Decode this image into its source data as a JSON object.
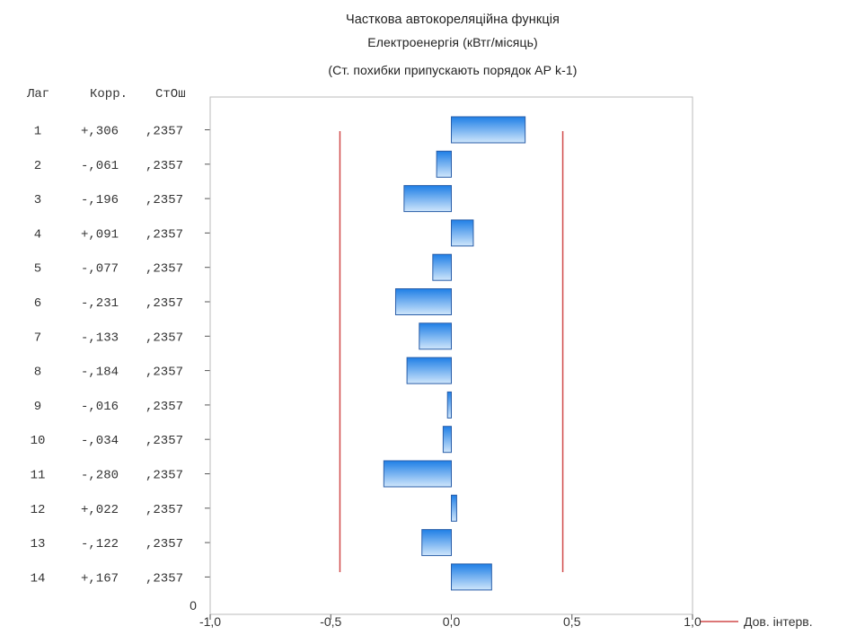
{
  "chart_data": {
    "type": "bar",
    "orientation": "horizontal",
    "title": "Часткова автокореляційна функція",
    "subtitle": "Електроенергія (кВтг/місяць)",
    "subtitle2": "(Ст. похибки припускають порядок АР k-1)",
    "table_headers": [
      "Лаг",
      "Корр.",
      "СтОш"
    ],
    "lags": [
      1,
      2,
      3,
      4,
      5,
      6,
      7,
      8,
      9,
      10,
      11,
      12,
      13,
      14
    ],
    "corr": [
      0.306,
      -0.061,
      -0.196,
      0.091,
      -0.077,
      -0.231,
      -0.133,
      -0.184,
      -0.016,
      -0.034,
      -0.28,
      0.022,
      -0.122,
      0.167
    ],
    "corr_labels": [
      "+,306",
      "-,061",
      "-,196",
      "+,091",
      "-,077",
      "-,231",
      "-,133",
      "-,184",
      "-,016",
      "-,034",
      "-,280",
      "+,022",
      "-,122",
      "+,167"
    ],
    "stderr_labels": [
      ",2357",
      ",2357",
      ",2357",
      ",2357",
      ",2357",
      ",2357",
      ",2357",
      ",2357",
      ",2357",
      ",2357",
      ",2357",
      ",2357",
      ",2357",
      ",2357"
    ],
    "confidence_limit": 0.462,
    "xlim": [
      -1.0,
      1.0
    ],
    "x_ticks": [
      -1.0,
      -0.5,
      0.0,
      0.5,
      1.0
    ],
    "x_tick_labels": [
      "-1,0",
      "-0,5",
      "0,0",
      "0,5",
      "1,0"
    ],
    "y_bottom_label": "0",
    "legend": {
      "label": "Дов. інтерв.",
      "position": "bottom-right",
      "color": "#d04a4a"
    },
    "grid": false,
    "colors": {
      "bar_top": "#1f7fe6",
      "bar_bottom": "#cfe6fb",
      "bar_border": "#2a5ea8",
      "ci_line": "#d04a4a"
    }
  }
}
